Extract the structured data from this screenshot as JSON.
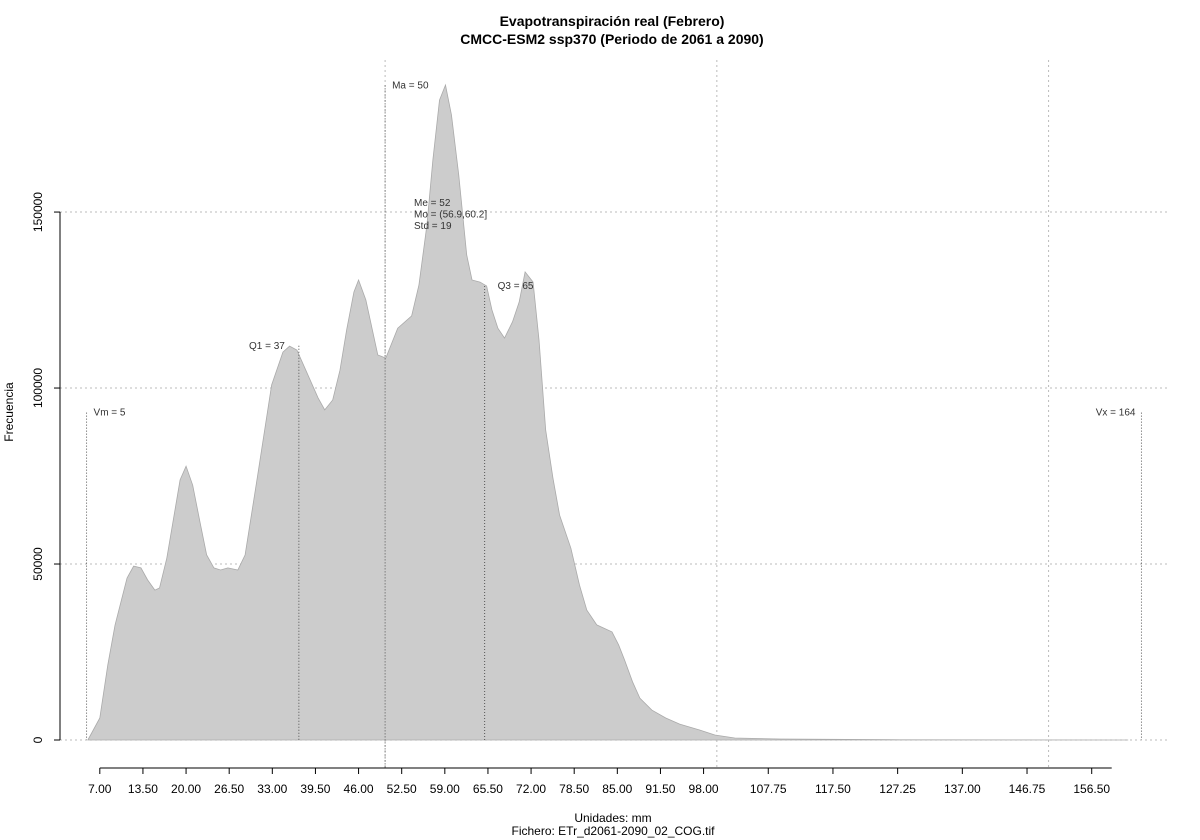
{
  "chart_data": {
    "type": "area",
    "title": "Evapotranspiración real (Febrero)",
    "subtitle": "CMCC-ESM2 ssp370 (Periodo de 2061 a 2090)",
    "x_label": "Unidades: mm",
    "footer": "Fichero: ETr_d2061-2090_02_COG.tif",
    "y_label": "Frecuencia",
    "color": "#cccccc",
    "x": [
      5.2,
      7,
      8.2,
      9.3,
      11.1,
      12.1,
      13.2,
      14.2,
      15.3,
      16,
      17.1,
      19.1,
      20,
      21,
      22.1,
      23.1,
      24.2,
      25.2,
      26.3,
      27.8,
      28.9,
      30.8,
      32.9,
      34.6,
      35.6,
      36.7,
      37.9,
      39.9,
      40.9,
      42.1,
      43.2,
      44.2,
      45.3,
      46,
      47.1,
      48.9,
      50.1,
      51.9,
      54,
      55.1,
      56.3,
      57.2,
      58.2,
      59.1,
      60,
      61.1,
      62.3,
      63.1,
      64.3,
      65.3,
      66.1,
      67,
      68,
      69.2,
      70.2,
      71.1,
      72.3,
      73.2,
      74.2,
      75.3,
      76.3,
      78,
      79.3,
      80.4,
      81.9,
      84.2,
      85.2,
      86.1,
      87.3,
      88.4,
      90.2,
      92.3,
      94.4,
      97.4,
      99.7,
      102.7,
      109.5,
      127.6,
      162
    ],
    "values": [
      0,
      6250,
      21300,
      32700,
      46000,
      49400,
      48900,
      45500,
      42600,
      43200,
      51700,
      73900,
      77800,
      72400,
      61900,
      52600,
      48900,
      48300,
      48900,
      48300,
      52600,
      75300,
      100900,
      110200,
      111900,
      110800,
      105700,
      97200,
      93800,
      96600,
      105100,
      116500,
      127300,
      130700,
      125000,
      109400,
      108500,
      117000,
      120500,
      129300,
      146300,
      164800,
      181800,
      186100,
      177600,
      160500,
      137800,
      130700,
      130100,
      129000,
      122200,
      117000,
      114200,
      118800,
      124400,
      133000,
      130100,
      113600,
      88100,
      74400,
      63900,
      54500,
      44000,
      36900,
      32700,
      30700,
      27000,
      22700,
      16500,
      11900,
      8500,
      6250,
      4500,
      2840,
      1420,
      570,
      280,
      80,
      0
    ],
    "xlim": [
      1,
      168.3
    ],
    "ylim": [
      -7955,
      193200
    ],
    "xticks": [
      {
        "value": 7,
        "label": "7.00"
      },
      {
        "value": 13.5,
        "label": "13.50"
      },
      {
        "value": 20,
        "label": "20.00"
      },
      {
        "value": 26.5,
        "label": "26.50"
      },
      {
        "value": 33,
        "label": "33.00"
      },
      {
        "value": 39.5,
        "label": "39.50"
      },
      {
        "value": 46,
        "label": "46.00"
      },
      {
        "value": 52.5,
        "label": "52.50"
      },
      {
        "value": 59,
        "label": "59.00"
      },
      {
        "value": 65.5,
        "label": "65.50"
      },
      {
        "value": 72,
        "label": "72.00"
      },
      {
        "value": 78.5,
        "label": "78.50"
      },
      {
        "value": 85,
        "label": "85.00"
      },
      {
        "value": 91.5,
        "label": "91.50"
      },
      {
        "value": 98,
        "label": "98.00"
      },
      {
        "value": 107.75,
        "label": "107.75"
      },
      {
        "value": 117.5,
        "label": "117.50"
      },
      {
        "value": 127.25,
        "label": "127.25"
      },
      {
        "value": 137,
        "label": "137.00"
      },
      {
        "value": 146.75,
        "label": "146.75"
      },
      {
        "value": 156.5,
        "label": "156.50"
      }
    ],
    "yticks": [
      0,
      50000,
      100000,
      150000
    ],
    "xgrid": [
      50,
      100,
      150
    ],
    "grid": true,
    "annotations": [
      {
        "label": "Vm = 5",
        "x": 5,
        "y": 93000
      },
      {
        "label": "Q1 = 37",
        "x": 37,
        "y": 112000
      },
      {
        "label": "Ma = 50",
        "x": 50,
        "y": 186000
      },
      {
        "label": "Q3 = 65",
        "x": 65,
        "y": 129000
      },
      {
        "label": "Vx = 164",
        "x": 164,
        "y": 93000
      }
    ],
    "stats": [
      "Me = 52",
      "Mo = (56.9,60.2]",
      "Std = 19"
    ]
  }
}
